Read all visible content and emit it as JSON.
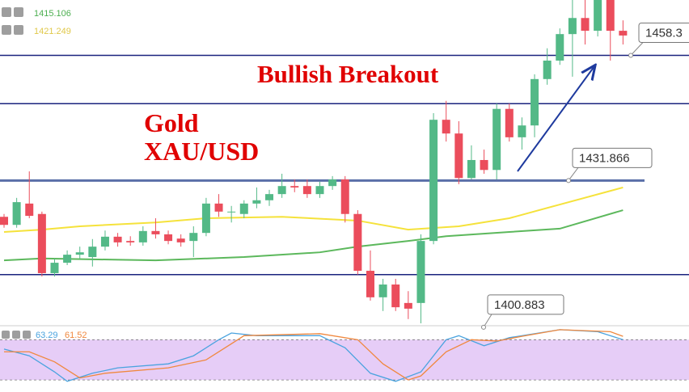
{
  "chart_data": {
    "type": "candlestick",
    "title": "Bullish Breakout",
    "annotations": [
      "Gold",
      "XAU/USD"
    ],
    "ylim": [
      1400,
      1470
    ],
    "up_color": "#53b987",
    "down_color": "#eb4d5c",
    "open": [
      1424.2,
      1422.5,
      1427.0,
      1424.8,
      1412.3,
      1414.5,
      1416.2,
      1415.7,
      1417.9,
      1420.0,
      1419.1,
      1418.8,
      1421.2,
      1420.5,
      1419.6,
      1419.1,
      1420.8,
      1427.0,
      1425.3,
      1424.8,
      1427.0,
      1427.7,
      1429.0,
      1430.7,
      1430.7,
      1429.0,
      1430.7,
      1432.1,
      1424.8,
      1412.8,
      1407.2,
      1409.9,
      1406.0,
      1406.0,
      1419.1,
      1444.7,
      1441.8,
      1432.4,
      1436.2,
      1434.1,
      1447.0,
      1441.0,
      1443.5,
      1453.3,
      1457.2,
      1462.8,
      1466.2,
      1463.5,
      1470.0,
      1463.5
    ],
    "high": [
      1424.8,
      1428.2,
      1433.8,
      1425.3,
      1415.4,
      1417.1,
      1417.9,
      1419.5,
      1421.3,
      1420.8,
      1420.1,
      1422.2,
      1423.9,
      1421.3,
      1420.5,
      1422.2,
      1428.2,
      1429.0,
      1426.5,
      1427.7,
      1430.4,
      1429.9,
      1433.3,
      1432.1,
      1432.1,
      1431.6,
      1432.8,
      1432.8,
      1425.6,
      1417.1,
      1411.1,
      1411.1,
      1408.5,
      1420.5,
      1446.1,
      1448.7,
      1444.4,
      1439.3,
      1438.4,
      1448.1,
      1448.1,
      1445.2,
      1454.3,
      1459.8,
      1464.0,
      1470.0,
      1470.0,
      1470.0,
      1470.0,
      1465.7
    ],
    "low": [
      1421.9,
      1421.9,
      1423.9,
      1411.6,
      1411.6,
      1414.0,
      1415.4,
      1413.7,
      1417.1,
      1417.9,
      1418.1,
      1418.1,
      1419.6,
      1418.4,
      1417.9,
      1415.7,
      1420.1,
      1424.2,
      1423.0,
      1423.9,
      1426.0,
      1426.5,
      1428.2,
      1429.4,
      1428.2,
      1428.2,
      1429.9,
      1423.0,
      1412.0,
      1406.5,
      1404.3,
      1404.3,
      1402.6,
      1401.7,
      1418.4,
      1440.1,
      1431.1,
      1432.1,
      1433.3,
      1432.1,
      1440.1,
      1438.4,
      1441.0,
      1452.1,
      1456.3,
      1453.8,
      1460.6,
      1462.3,
      1457.2,
      1460.6
    ],
    "close": [
      1422.5,
      1427.3,
      1424.4,
      1412.3,
      1414.5,
      1416.2,
      1416.7,
      1417.9,
      1420.0,
      1418.8,
      1418.8,
      1421.2,
      1420.5,
      1419.1,
      1418.8,
      1420.8,
      1427.0,
      1425.3,
      1425.3,
      1427.0,
      1427.7,
      1429.0,
      1430.7,
      1430.4,
      1429.0,
      1430.7,
      1432.1,
      1424.8,
      1412.8,
      1407.2,
      1409.9,
      1405.1,
      1404.8,
      1419.1,
      1444.7,
      1441.8,
      1432.4,
      1436.2,
      1434.1,
      1447.0,
      1441.0,
      1443.5,
      1453.3,
      1457.2,
      1462.8,
      1466.2,
      1463.5,
      1470.0,
      1463.5,
      1462.5
    ],
    "moving_averages": [
      {
        "color": "#f5e23b",
        "x": [
          0,
          3,
          6,
          12,
          16,
          22,
          28,
          32,
          36,
          40,
          44,
          49
        ],
        "values": [
          1421.0,
          1421.5,
          1422.2,
          1423.0,
          1423.9,
          1424.2,
          1423.4,
          1421.5,
          1422.2,
          1423.9,
          1426.8,
          1430.4
        ]
      },
      {
        "color": "#5cb85c",
        "x": [
          0,
          3,
          12,
          19,
          25,
          28,
          32,
          35,
          40,
          44,
          49
        ],
        "values": [
          1415.0,
          1415.4,
          1415.0,
          1415.7,
          1416.7,
          1417.9,
          1419.1,
          1420.1,
          1421.0,
          1421.7,
          1425.6
        ]
      }
    ],
    "legend_values": [
      {
        "value": 1415.106,
        "color": "#4caf50"
      },
      {
        "value": 1421.249,
        "color": "#e0c84a"
      }
    ],
    "levels": [
      1458.3,
      1448.1,
      1431.866,
      1412.0
    ],
    "callouts": [
      1458.3,
      1431.866,
      1400.883
    ],
    "oscillator": {
      "ylim": [
        0,
        100
      ],
      "band": [
        20,
        80
      ],
      "band_color": "#e6cdf7",
      "series": [
        {
          "color": "#4aa3df",
          "x": [
            0,
            2,
            4,
            5,
            7,
            9,
            13,
            15,
            17,
            18,
            20,
            25,
            27,
            29,
            31,
            33,
            35,
            36,
            38,
            40,
            44,
            47,
            49
          ],
          "values": [
            66,
            56,
            32,
            18,
            30,
            38,
            44,
            56,
            80,
            90,
            86,
            86,
            68,
            30,
            18,
            32,
            80,
            86,
            71,
            83,
            95,
            92,
            80
          ]
        },
        {
          "color": "#f0883e",
          "x": [
            0,
            2,
            4,
            6,
            8,
            13,
            16,
            18,
            19,
            25,
            28,
            30,
            32,
            33,
            35,
            37,
            39,
            41,
            44,
            48,
            49
          ],
          "values": [
            62,
            62,
            47,
            23,
            30,
            38,
            50,
            74,
            86,
            89,
            80,
            44,
            20,
            26,
            62,
            80,
            78,
            85,
            95,
            92,
            85
          ]
        }
      ],
      "legend_values": [
        63.29,
        61.52
      ]
    }
  }
}
